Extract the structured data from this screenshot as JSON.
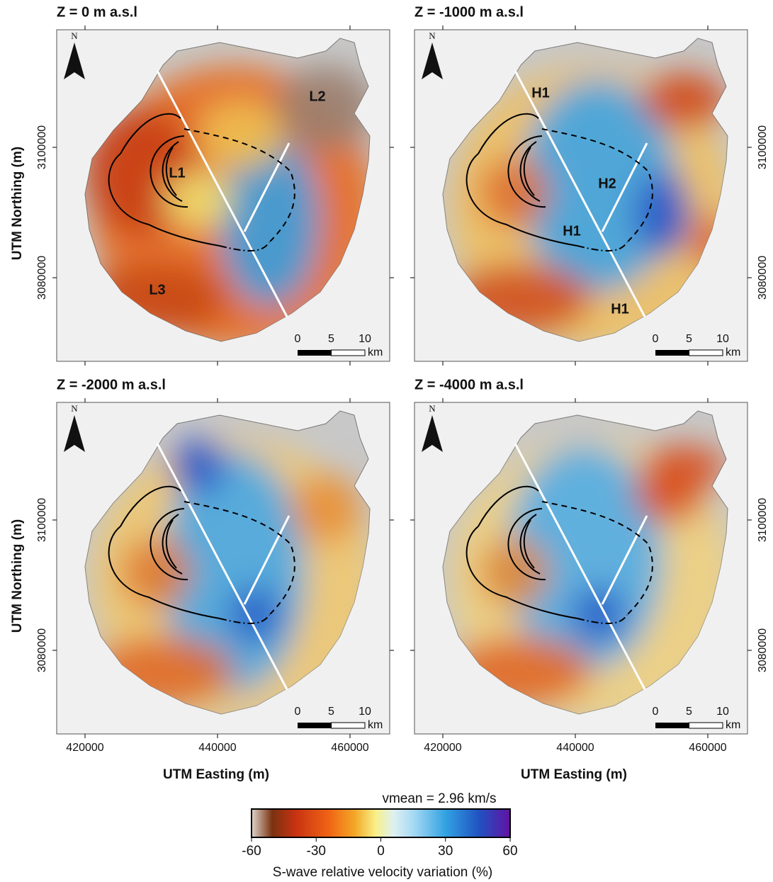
{
  "panels": [
    {
      "title": "Z = 0 m a.s.l",
      "labels": [
        "L2",
        "L1",
        "L3"
      ]
    },
    {
      "title": "Z = -1000 m a.s.l",
      "labels": [
        "H1",
        "H2",
        "H1",
        "H1"
      ]
    },
    {
      "title": "Z = -2000 m a.s.l"
    },
    {
      "title": "Z = -4000 m a.s.l"
    }
  ],
  "north": "N",
  "scale_bar": {
    "ticks": [
      0,
      5,
      10
    ],
    "unit": "km"
  },
  "axes": {
    "x_label": "UTM Easting (m)",
    "y_label": "UTM Northing (m)",
    "xticks": [
      420000,
      440000,
      460000
    ],
    "yticks": [
      3080000,
      3100000
    ]
  },
  "colorbar": {
    "title": "vmean = 2.96 km/s",
    "ticks": [
      -60,
      -30,
      0,
      30,
      60
    ],
    "label": "S-wave relative velocity variation (%)"
  }
}
